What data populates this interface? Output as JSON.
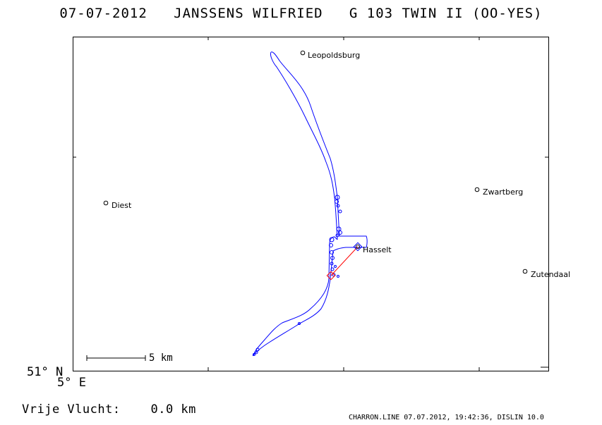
{
  "header": {
    "title": "07-07-2012   JANSSENS WILFRIED   G 103 TWIN II (OO-YES)"
  },
  "map": {
    "cities": [
      {
        "id": "leopoldsburg",
        "name": "Leopoldsburg"
      },
      {
        "id": "diest",
        "name": "Diest"
      },
      {
        "id": "zwartberg",
        "name": "Zwartberg"
      },
      {
        "id": "hasselt",
        "name": "Hasselt"
      },
      {
        "id": "zutendaal",
        "name": "Zutendaal"
      }
    ],
    "scale_label": "5 km",
    "lat_label": "51° N",
    "lon_label": "5° E",
    "colors": {
      "flight_track": "#0000ff",
      "task_line": "#ff0000",
      "frame": "#000000"
    }
  },
  "footer": {
    "distance_text": "Vrije Vlucht:    0.0 km",
    "credit_text": "CHARRON.LINE 07.07.2012, 19:42:36, DISLIN 10.0"
  }
}
